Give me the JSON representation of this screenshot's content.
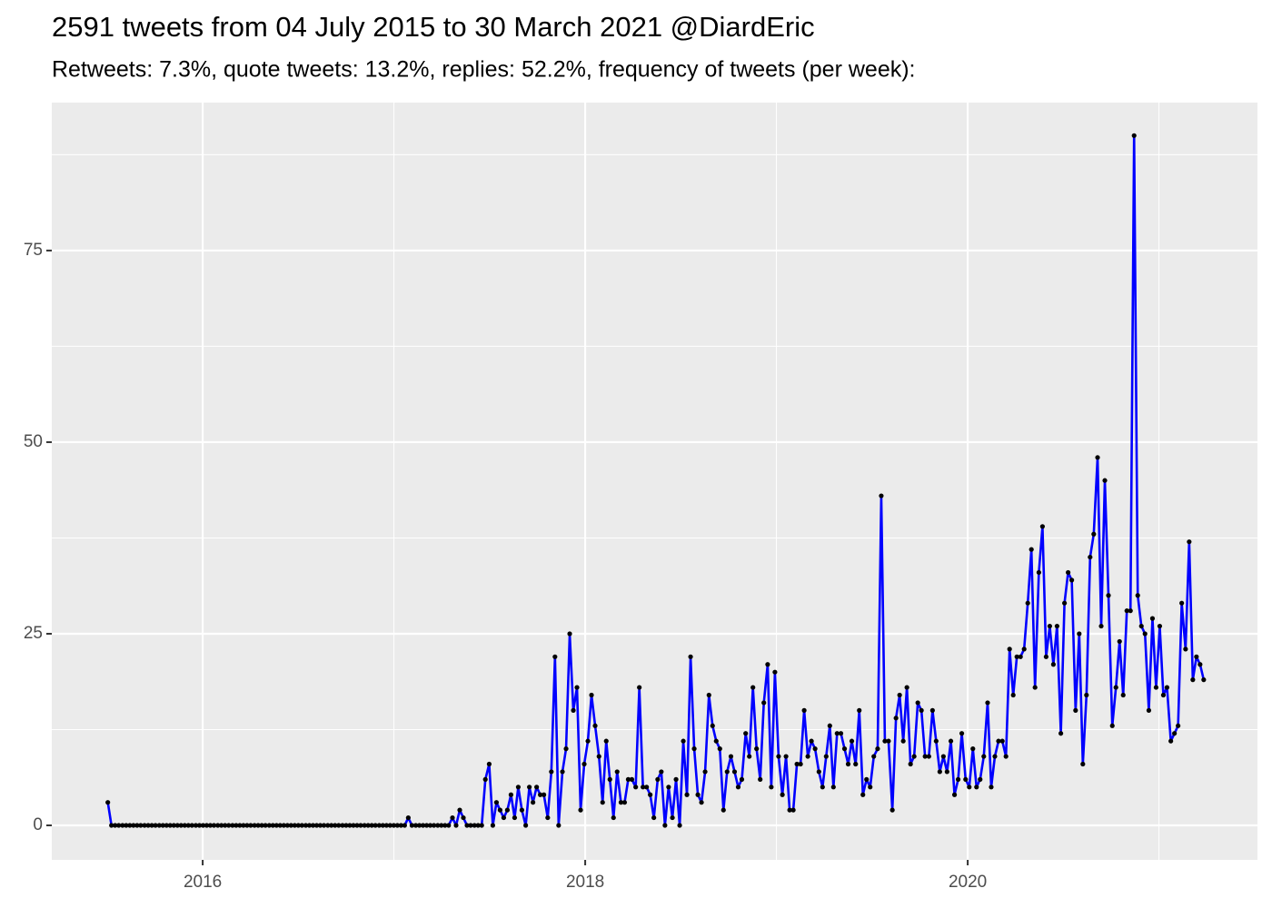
{
  "chart_data": {
    "type": "line",
    "title": "2591 tweets from 04 July 2015 to 30 March 2021 @DiardEric",
    "subtitle": "Retweets: 7.3%, quote tweets: 13.2%, replies: 52.2%, frequency of tweets (per week):",
    "x": [
      2015.504,
      2015.523,
      2015.542,
      2015.561,
      2015.581,
      2015.6,
      2015.619,
      2015.638,
      2015.657,
      2015.676,
      2015.696,
      2015.715,
      2015.734,
      2015.753,
      2015.773,
      2015.792,
      2015.811,
      2015.83,
      2015.849,
      2015.868,
      2015.887,
      2015.906,
      2015.925,
      2015.944,
      2015.964,
      2015.983,
      2016.002,
      2016.021,
      2016.04,
      2016.059,
      2016.079,
      2016.098,
      2016.117,
      2016.136,
      2016.156,
      2016.175,
      2016.194,
      2016.213,
      2016.232,
      2016.251,
      2016.271,
      2016.29,
      2016.309,
      2016.328,
      2016.348,
      2016.367,
      2016.386,
      2016.405,
      2016.424,
      2016.443,
      2016.462,
      2016.481,
      2016.5,
      2016.519,
      2016.539,
      2016.558,
      2016.577,
      2016.596,
      2016.615,
      2016.634,
      2016.654,
      2016.673,
      2016.692,
      2016.711,
      2016.731,
      2016.75,
      2016.769,
      2016.788,
      2016.807,
      2016.826,
      2016.846,
      2016.865,
      2016.884,
      2016.903,
      2016.923,
      2016.942,
      2016.961,
      2016.98,
      2016.999,
      2017.018,
      2017.037,
      2017.056,
      2017.075,
      2017.094,
      2017.114,
      2017.133,
      2017.152,
      2017.171,
      2017.19,
      2017.209,
      2017.229,
      2017.248,
      2017.267,
      2017.286,
      2017.306,
      2017.325,
      2017.344,
      2017.363,
      2017.382,
      2017.401,
      2017.421,
      2017.44,
      2017.459,
      2017.478,
      2017.498,
      2017.517,
      2017.536,
      2017.555,
      2017.574,
      2017.593,
      2017.612,
      2017.631,
      2017.65,
      2017.669,
      2017.689,
      2017.708,
      2017.727,
      2017.746,
      2017.765,
      2017.784,
      2017.804,
      2017.823,
      2017.842,
      2017.861,
      2017.881,
      2017.9,
      2017.919,
      2017.938,
      2017.957,
      2017.976,
      2017.995,
      2018.014,
      2018.033,
      2018.052,
      2018.072,
      2018.091,
      2018.11,
      2018.129,
      2018.148,
      2018.167,
      2018.187,
      2018.206,
      2018.225,
      2018.244,
      2018.264,
      2018.283,
      2018.302,
      2018.321,
      2018.34,
      2018.359,
      2018.379,
      2018.398,
      2018.417,
      2018.436,
      2018.456,
      2018.475,
      2018.494,
      2018.513,
      2018.532,
      2018.551,
      2018.57,
      2018.589,
      2018.608,
      2018.627,
      2018.647,
      2018.666,
      2018.685,
      2018.704,
      2018.723,
      2018.742,
      2018.762,
      2018.781,
      2018.8,
      2018.819,
      2018.839,
      2018.858,
      2018.877,
      2018.896,
      2018.915,
      2018.934,
      2018.954,
      2018.973,
      2018.992,
      2019.011,
      2019.031,
      2019.05,
      2019.069,
      2019.088,
      2019.107,
      2019.126,
      2019.145,
      2019.164,
      2019.183,
      2019.202,
      2019.222,
      2019.241,
      2019.26,
      2019.279,
      2019.298,
      2019.317,
      2019.337,
      2019.356,
      2019.375,
      2019.394,
      2019.414,
      2019.433,
      2019.452,
      2019.471,
      2019.49,
      2019.509,
      2019.529,
      2019.548,
      2019.567,
      2019.586,
      2019.606,
      2019.625,
      2019.644,
      2019.663,
      2019.682,
      2019.701,
      2019.72,
      2019.739,
      2019.758,
      2019.777,
      2019.797,
      2019.816,
      2019.835,
      2019.854,
      2019.873,
      2019.892,
      2019.912,
      2019.931,
      2019.95,
      2019.969,
      2019.989,
      2020.008,
      2020.027,
      2020.046,
      2020.065,
      2020.084,
      2020.104,
      2020.123,
      2020.142,
      2020.161,
      2020.181,
      2020.2,
      2020.219,
      2020.238,
      2020.257,
      2020.276,
      2020.295,
      2020.314,
      2020.333,
      2020.352,
      2020.372,
      2020.391,
      2020.41,
      2020.429,
      2020.448,
      2020.467,
      2020.487,
      2020.506,
      2020.525,
      2020.544,
      2020.564,
      2020.583,
      2020.602,
      2020.621,
      2020.64,
      2020.659,
      2020.679,
      2020.698,
      2020.717,
      2020.736,
      2020.756,
      2020.775,
      2020.794,
      2020.813,
      2020.832,
      2020.851,
      2020.87,
      2020.889,
      2020.908,
      2020.927,
      2020.947,
      2020.966,
      2020.985,
      2021.004,
      2021.023,
      2021.042,
      2021.062,
      2021.081,
      2021.1,
      2021.119,
      2021.139,
      2021.158,
      2021.177,
      2021.196,
      2021.215,
      2021.234
    ],
    "values": [
      3,
      0,
      0,
      0,
      0,
      0,
      0,
      0,
      0,
      0,
      0,
      0,
      0,
      0,
      0,
      0,
      0,
      0,
      0,
      0,
      0,
      0,
      0,
      0,
      0,
      0,
      0,
      0,
      0,
      0,
      0,
      0,
      0,
      0,
      0,
      0,
      0,
      0,
      0,
      0,
      0,
      0,
      0,
      0,
      0,
      0,
      0,
      0,
      0,
      0,
      0,
      0,
      0,
      0,
      0,
      0,
      0,
      0,
      0,
      0,
      0,
      0,
      0,
      0,
      0,
      0,
      0,
      0,
      0,
      0,
      0,
      0,
      0,
      0,
      0,
      0,
      0,
      0,
      0,
      0,
      0,
      0,
      1,
      0,
      0,
      0,
      0,
      0,
      0,
      0,
      0,
      0,
      0,
      0,
      1,
      0,
      2,
      1,
      0,
      0,
      0,
      0,
      0,
      6,
      8,
      0,
      3,
      2,
      1,
      2,
      4,
      1,
      5,
      2,
      0,
      5,
      3,
      5,
      4,
      4,
      1,
      7,
      22,
      0,
      7,
      10,
      25,
      15,
      18,
      2,
      8,
      11,
      17,
      13,
      9,
      3,
      11,
      6,
      1,
      7,
      3,
      3,
      6,
      6,
      5,
      18,
      5,
      5,
      4,
      1,
      6,
      7,
      0,
      5,
      1,
      6,
      0,
      11,
      4,
      22,
      10,
      4,
      3,
      7,
      17,
      13,
      11,
      10,
      2,
      7,
      9,
      7,
      5,
      6,
      12,
      9,
      18,
      10,
      6,
      16,
      21,
      5,
      20,
      9,
      4,
      9,
      2,
      2,
      8,
      8,
      15,
      9,
      11,
      10,
      7,
      5,
      9,
      13,
      5,
      12,
      12,
      10,
      8,
      11,
      8,
      15,
      4,
      6,
      5,
      9,
      10,
      43,
      11,
      11,
      2,
      14,
      17,
      11,
      18,
      8,
      9,
      16,
      15,
      9,
      9,
      15,
      11,
      7,
      9,
      7,
      11,
      4,
      6,
      12,
      6,
      5,
      10,
      5,
      6,
      9,
      16,
      5,
      9,
      11,
      11,
      9,
      23,
      17,
      22,
      22,
      23,
      29,
      36,
      18,
      33,
      39,
      22,
      26,
      21,
      26,
      12,
      29,
      33,
      32,
      15,
      25,
      8,
      17,
      35,
      38,
      48,
      26,
      45,
      30,
      13,
      18,
      24,
      17,
      28,
      28,
      90,
      30,
      26,
      25,
      15,
      27,
      18,
      26,
      17,
      18,
      11,
      12,
      13,
      29,
      23,
      37,
      19,
      22,
      21,
      19
    ],
    "color": "#0000ff",
    "marker_color": "#000000",
    "xlim": [
      2015.211,
      2021.515
    ],
    "ylim": [
      -4.5,
      94.3
    ],
    "xticks": [
      2016,
      2018,
      2020
    ],
    "yticks": [
      0,
      25,
      50,
      75
    ],
    "xminor": [
      2017,
      2019,
      2021
    ],
    "yminor": [
      12.5,
      37.5,
      62.5,
      87.5
    ],
    "grid": true
  }
}
